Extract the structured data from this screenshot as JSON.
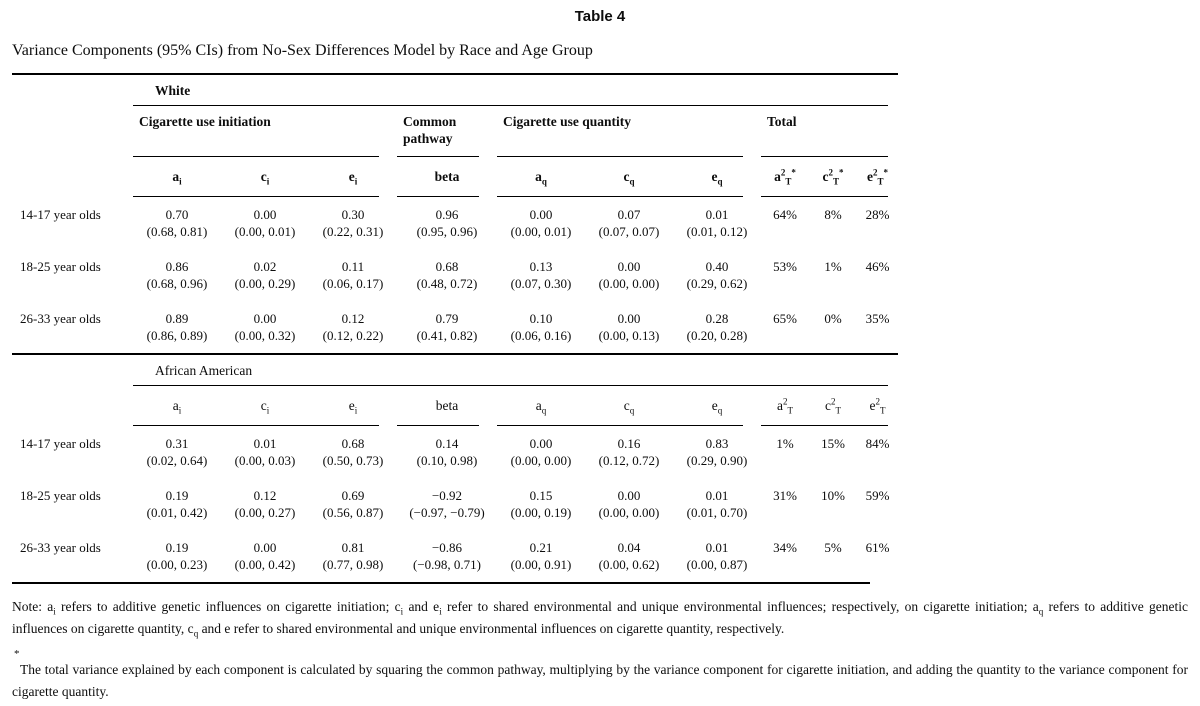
{
  "page": {
    "caption": "Table 4",
    "title": "Variance Components (95% CIs) from No-Sex Differences Model by Race and Age Group"
  },
  "groups": [
    "Cigarette use initiation",
    "Common pathway",
    "Cigarette use quantity",
    "Total"
  ],
  "sections": [
    {
      "race": "White",
      "subheaders": [
        [
          {
            "t": "a"
          },
          {
            "sub": "i"
          }
        ],
        [
          {
            "t": "c"
          },
          {
            "sub": "i"
          }
        ],
        [
          {
            "t": "e"
          },
          {
            "sub": "i"
          }
        ],
        [
          {
            "t": "beta"
          }
        ],
        [
          {
            "t": "a"
          },
          {
            "sub": "q"
          }
        ],
        [
          {
            "t": "c"
          },
          {
            "sub": "q"
          }
        ],
        [
          {
            "t": "e"
          },
          {
            "sub": "q"
          }
        ],
        [
          {
            "t": "a"
          },
          {
            "sup": "2"
          },
          {
            "sub": "T"
          },
          {
            "sup": "*"
          }
        ],
        [
          {
            "t": "c"
          },
          {
            "sup": "2"
          },
          {
            "sub": "T"
          },
          {
            "sup": "*"
          }
        ],
        [
          {
            "t": "e"
          },
          {
            "sup": "2"
          },
          {
            "sub": "T"
          },
          {
            "sup": "*"
          }
        ]
      ],
      "rows": [
        {
          "label": "14-17 year olds",
          "cells": [
            {
              "v": "0.70",
              "ci": "(0.68, 0.81)"
            },
            {
              "v": "0.00",
              "ci": "(0.00, 0.01)"
            },
            {
              "v": "0.30",
              "ci": "(0.22, 0.31)"
            },
            {
              "v": "0.96",
              "ci": "(0.95, 0.96)"
            },
            {
              "v": "0.00",
              "ci": "(0.00, 0.01)"
            },
            {
              "v": "0.07",
              "ci": "(0.07, 0.07)"
            },
            {
              "v": "0.01",
              "ci": "(0.01, 0.12)"
            }
          ],
          "totals": [
            "64%",
            "8%",
            "28%"
          ]
        },
        {
          "label": "18-25 year olds",
          "cells": [
            {
              "v": "0.86",
              "ci": "(0.68, 0.96)"
            },
            {
              "v": "0.02",
              "ci": "(0.00, 0.29)"
            },
            {
              "v": "0.11",
              "ci": "(0.06, 0.17)"
            },
            {
              "v": "0.68",
              "ci": "(0.48, 0.72)"
            },
            {
              "v": "0.13",
              "ci": "(0.07, 0.30)"
            },
            {
              "v": "0.00",
              "ci": "(0.00, 0.00)"
            },
            {
              "v": "0.40",
              "ci": "(0.29, 0.62)"
            }
          ],
          "totals": [
            "53%",
            "1%",
            "46%"
          ]
        },
        {
          "label": "26-33 year olds",
          "cells": [
            {
              "v": "0.89",
              "ci": "(0.86, 0.89)"
            },
            {
              "v": "0.00",
              "ci": "(0.00, 0.32)"
            },
            {
              "v": "0.12",
              "ci": "(0.12, 0.22)"
            },
            {
              "v": "0.79",
              "ci": "(0.41, 0.82)"
            },
            {
              "v": "0.10",
              "ci": "(0.06, 0.16)"
            },
            {
              "v": "0.00",
              "ci": "(0.00, 0.13)"
            },
            {
              "v": "0.28",
              "ci": "(0.20, 0.28)"
            }
          ],
          "totals": [
            "65%",
            "0%",
            "35%"
          ]
        }
      ]
    },
    {
      "race": "African American",
      "subheaders": [
        [
          {
            "t": "a"
          },
          {
            "sub": "i"
          }
        ],
        [
          {
            "t": "c"
          },
          {
            "sub": "i"
          }
        ],
        [
          {
            "t": "e"
          },
          {
            "sub": "i"
          }
        ],
        [
          {
            "t": "beta"
          }
        ],
        [
          {
            "t": "a"
          },
          {
            "sub": "q"
          }
        ],
        [
          {
            "t": "c"
          },
          {
            "sub": "q"
          }
        ],
        [
          {
            "t": "e"
          },
          {
            "sub": "q"
          }
        ],
        [
          {
            "t": "a"
          },
          {
            "sup": "2"
          },
          {
            "sub": "T"
          }
        ],
        [
          {
            "t": "c"
          },
          {
            "sup": "2"
          },
          {
            "sub": "T"
          }
        ],
        [
          {
            "t": "e"
          },
          {
            "sup": "2"
          },
          {
            "sub": "T"
          }
        ]
      ],
      "rows": [
        {
          "label": "14-17 year olds",
          "cells": [
            {
              "v": "0.31",
              "ci": "(0.02, 0.64)"
            },
            {
              "v": "0.01",
              "ci": "(0.00, 0.03)"
            },
            {
              "v": "0.68",
              "ci": "(0.50, 0.73)"
            },
            {
              "v": "0.14",
              "ci": "(0.10, 0.98)"
            },
            {
              "v": "0.00",
              "ci": "(0.00, 0.00)"
            },
            {
              "v": "0.16",
              "ci": "(0.12, 0.72)"
            },
            {
              "v": "0.83",
              "ci": "(0.29, 0.90)"
            }
          ],
          "totals": [
            "1%",
            "15%",
            "84%"
          ]
        },
        {
          "label": "18-25 year olds",
          "cells": [
            {
              "v": "0.19",
              "ci": "(0.01, 0.42)"
            },
            {
              "v": "0.12",
              "ci": "(0.00, 0.27)"
            },
            {
              "v": "0.69",
              "ci": "(0.56, 0.87)"
            },
            {
              "v": "−0.92",
              "ci": "(−0.97, −0.79)"
            },
            {
              "v": "0.15",
              "ci": "(0.00, 0.19)"
            },
            {
              "v": "0.00",
              "ci": "(0.00, 0.00)"
            },
            {
              "v": "0.01",
              "ci": "(0.01, 0.70)"
            }
          ],
          "totals": [
            "31%",
            "10%",
            "59%"
          ]
        },
        {
          "label": "26-33 year olds",
          "cells": [
            {
              "v": "0.19",
              "ci": "(0.00, 0.23)"
            },
            {
              "v": "0.00",
              "ci": "(0.00, 0.42)"
            },
            {
              "v": "0.81",
              "ci": "(0.77, 0.98)"
            },
            {
              "v": "−0.86",
              "ci": "(−0.98, 0.71)"
            },
            {
              "v": "0.21",
              "ci": "(0.00, 0.91)"
            },
            {
              "v": "0.04",
              "ci": "(0.00, 0.62)"
            },
            {
              "v": "0.01",
              "ci": "(0.00, 0.87)"
            }
          ],
          "totals": [
            "34%",
            "5%",
            "61%"
          ]
        }
      ]
    }
  ],
  "notes": {
    "main": [
      {
        "t": "Note: a"
      },
      {
        "sub": "i"
      },
      {
        "t": " refers to additive genetic influences on cigarette initiation; c"
      },
      {
        "sub": "i"
      },
      {
        "t": " and e"
      },
      {
        "sub": "i"
      },
      {
        "t": " refer to shared environmental and unique environmental influences; respectively, on cigarette initiation; a"
      },
      {
        "sub": "q"
      },
      {
        "t": " refers to additive genetic influences on cigarette quantity, c"
      },
      {
        "sub": "q"
      },
      {
        "t": " and e refer to shared environmental and unique environmental influences on cigarette quantity, respectively."
      }
    ],
    "star": "*",
    "footnote": "The total variance explained by each component is calculated by squaring the common pathway, multiplying by the variance component for cigarette initiation, and adding the quantity to the variance component for cigarette quantity."
  }
}
